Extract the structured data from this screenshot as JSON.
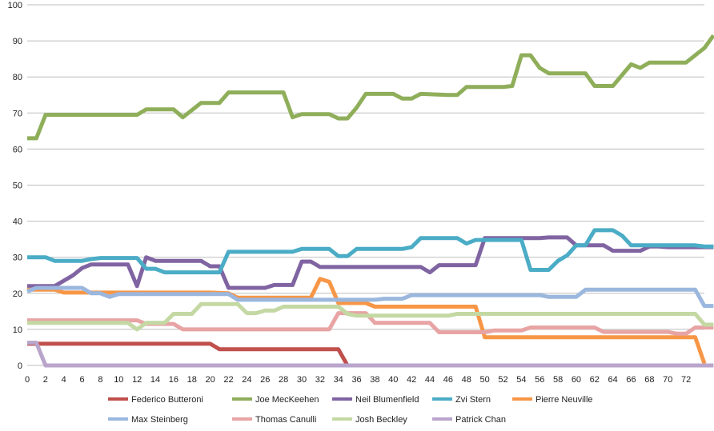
{
  "chart_data": {
    "type": "line",
    "title": "",
    "xlabel": "",
    "ylabel": "",
    "ylim": [
      0,
      100
    ],
    "yticks": [
      0,
      10,
      20,
      30,
      40,
      50,
      60,
      70,
      80,
      90,
      100
    ],
    "xlim": [
      0,
      72
    ],
    "xticks": [
      0,
      2,
      4,
      6,
      8,
      10,
      12,
      14,
      16,
      18,
      20,
      22,
      24,
      26,
      28,
      30,
      32,
      34,
      36,
      38,
      40,
      42,
      44,
      46,
      48,
      50,
      52,
      54,
      56,
      58,
      60,
      62,
      64,
      66,
      68,
      70,
      72
    ],
    "grid": "horizontal",
    "legend_position": "bottom",
    "series": [
      {
        "name": "Federico Butteroni",
        "color": "#c0504d",
        "points": [
          [
            0,
            6
          ],
          [
            20,
            6
          ],
          [
            21,
            4.5
          ],
          [
            34,
            4.5
          ],
          [
            35,
            0
          ]
        ]
      },
      {
        "name": "Joe MecKeehen",
        "color": "#8fae5a",
        "points": [
          [
            0,
            63
          ],
          [
            1,
            63
          ],
          [
            2,
            69.5
          ],
          [
            12,
            69.5
          ],
          [
            13,
            71
          ],
          [
            16,
            71
          ],
          [
            17,
            68.8
          ],
          [
            19,
            72.8
          ],
          [
            21,
            72.8
          ],
          [
            22,
            75.7
          ],
          [
            28,
            75.7
          ],
          [
            29,
            68.8
          ],
          [
            30,
            69.7
          ],
          [
            33,
            69.7
          ],
          [
            34,
            68.5
          ],
          [
            35,
            68.5
          ],
          [
            36,
            71.5
          ],
          [
            37,
            75.3
          ],
          [
            40,
            75.3
          ],
          [
            41,
            74
          ],
          [
            42,
            74
          ],
          [
            43,
            75.3
          ],
          [
            46,
            75
          ],
          [
            47,
            75
          ],
          [
            48,
            77.2
          ],
          [
            52,
            77.2
          ],
          [
            53,
            77.5
          ],
          [
            54,
            86
          ],
          [
            55,
            86
          ],
          [
            56,
            82.5
          ],
          [
            57,
            81
          ],
          [
            61,
            81
          ],
          [
            62,
            77.5
          ],
          [
            63,
            77.5
          ],
          [
            64,
            77.5
          ],
          [
            65,
            80.5
          ],
          [
            66,
            83.5
          ],
          [
            67,
            82.5
          ],
          [
            68,
            84
          ],
          [
            72,
            84
          ],
          [
            73,
            86
          ],
          [
            74,
            88
          ],
          [
            75,
            91.5
          ]
        ]
      },
      {
        "name": "Neil Blumenfield",
        "color": "#8064a2",
        "points": [
          [
            0,
            22
          ],
          [
            3,
            22
          ],
          [
            5,
            25
          ],
          [
            6,
            27
          ],
          [
            7,
            28
          ],
          [
            11,
            28
          ],
          [
            12,
            22
          ],
          [
            13,
            30
          ],
          [
            14,
            29
          ],
          [
            19,
            29
          ],
          [
            20,
            27.5
          ],
          [
            21,
            27.5
          ],
          [
            22,
            21.5
          ],
          [
            26,
            21.5
          ],
          [
            27,
            22.3
          ],
          [
            29,
            22.3
          ],
          [
            30,
            28.8
          ],
          [
            31,
            28.8
          ],
          [
            32,
            27.3
          ],
          [
            43,
            27.3
          ],
          [
            44,
            25.8
          ],
          [
            45,
            27.8
          ],
          [
            49,
            27.8
          ],
          [
            50,
            35.3
          ],
          [
            56,
            35.3
          ],
          [
            57,
            35.5
          ],
          [
            59,
            35.5
          ],
          [
            60,
            33.3
          ],
          [
            63,
            33.3
          ],
          [
            64,
            31.8
          ],
          [
            67,
            31.8
          ],
          [
            68,
            33
          ],
          [
            69,
            33
          ],
          [
            70,
            32.8
          ],
          [
            75,
            32.8
          ]
        ]
      },
      {
        "name": "Zvi Stern",
        "color": "#4bacc6",
        "points": [
          [
            0,
            30
          ],
          [
            2,
            30
          ],
          [
            3,
            29
          ],
          [
            6,
            29
          ],
          [
            7,
            29.5
          ],
          [
            8,
            29.8
          ],
          [
            12,
            29.8
          ],
          [
            13,
            26.8
          ],
          [
            14,
            26.8
          ],
          [
            15,
            25.8
          ],
          [
            20,
            25.8
          ],
          [
            21,
            25.8
          ],
          [
            22,
            31.5
          ],
          [
            29,
            31.5
          ],
          [
            30,
            32.3
          ],
          [
            33,
            32.3
          ],
          [
            34,
            30.3
          ],
          [
            35,
            30.3
          ],
          [
            36,
            32.3
          ],
          [
            40,
            32.3
          ],
          [
            41,
            32.3
          ],
          [
            42,
            32.8
          ],
          [
            43,
            35.3
          ],
          [
            47,
            35.3
          ],
          [
            48,
            33.8
          ],
          [
            49,
            34.8
          ],
          [
            54,
            34.8
          ],
          [
            55,
            26.5
          ],
          [
            57,
            26.5
          ],
          [
            58,
            29
          ],
          [
            59,
            30.5
          ],
          [
            60,
            33.3
          ],
          [
            61,
            33.3
          ],
          [
            62,
            37.5
          ],
          [
            64,
            37.5
          ],
          [
            65,
            36
          ],
          [
            66,
            33.3
          ],
          [
            73,
            33.3
          ],
          [
            74,
            33
          ],
          [
            75,
            33
          ]
        ]
      },
      {
        "name": "Pierre Neuville",
        "color": "#f79646",
        "points": [
          [
            0,
            21
          ],
          [
            3,
            21
          ],
          [
            4,
            20.2
          ],
          [
            20,
            20.2
          ],
          [
            22,
            20
          ],
          [
            23,
            18.8
          ],
          [
            31,
            18.8
          ],
          [
            32,
            24
          ],
          [
            33,
            23.2
          ],
          [
            34,
            17.3
          ],
          [
            36,
            17.3
          ],
          [
            37,
            17.3
          ],
          [
            38,
            16.3
          ],
          [
            49,
            16.3
          ],
          [
            50,
            7.8
          ],
          [
            73,
            7.8
          ],
          [
            74,
            0.5
          ]
        ]
      },
      {
        "name": "Max Steinberg",
        "color": "#9bb7de",
        "points": [
          [
            0,
            20.5
          ],
          [
            1,
            21.5
          ],
          [
            6,
            21.5
          ],
          [
            7,
            20
          ],
          [
            8,
            20
          ],
          [
            9,
            19
          ],
          [
            10,
            19.8
          ],
          [
            22,
            19.8
          ],
          [
            23,
            18.2
          ],
          [
            38,
            18.2
          ],
          [
            39,
            18.5
          ],
          [
            41,
            18.5
          ],
          [
            42,
            19.5
          ],
          [
            56,
            19.5
          ],
          [
            57,
            19
          ],
          [
            60,
            19
          ],
          [
            61,
            21
          ],
          [
            73,
            21
          ],
          [
            74,
            16.5
          ],
          [
            75,
            16.5
          ]
        ]
      },
      {
        "name": "Thomas Canulli",
        "color": "#e8a4a4",
        "points": [
          [
            0,
            12.5
          ],
          [
            12,
            12.5
          ],
          [
            13,
            11.5
          ],
          [
            16,
            11.5
          ],
          [
            17,
            10
          ],
          [
            33,
            10
          ],
          [
            34,
            14.5
          ],
          [
            37,
            14.5
          ],
          [
            38,
            11.8
          ],
          [
            44,
            11.8
          ],
          [
            45,
            9.2
          ],
          [
            50,
            9.2
          ],
          [
            51,
            9.7
          ],
          [
            54,
            9.7
          ],
          [
            55,
            10.5
          ],
          [
            62,
            10.5
          ],
          [
            63,
            9.3
          ],
          [
            70,
            9.3
          ],
          [
            71,
            8.8
          ],
          [
            72,
            8.8
          ],
          [
            73,
            10.5
          ],
          [
            75,
            10.5
          ]
        ]
      },
      {
        "name": "Josh Beckley",
        "color": "#c4d8a3",
        "points": [
          [
            0,
            11.8
          ],
          [
            11,
            11.8
          ],
          [
            12,
            10
          ],
          [
            13,
            11.8
          ],
          [
            15,
            11.8
          ],
          [
            16,
            14.3
          ],
          [
            18,
            14.3
          ],
          [
            19,
            17
          ],
          [
            23,
            17
          ],
          [
            24,
            14.5
          ],
          [
            25,
            14.5
          ],
          [
            26,
            15.2
          ],
          [
            27,
            15.2
          ],
          [
            28,
            16.3
          ],
          [
            34,
            16.3
          ],
          [
            35,
            14.3
          ],
          [
            36,
            13.8
          ],
          [
            46,
            13.8
          ],
          [
            47,
            14.3
          ],
          [
            73,
            14.3
          ],
          [
            74,
            11.3
          ],
          [
            75,
            11.3
          ]
        ]
      },
      {
        "name": "Patrick Chan",
        "color": "#b9a5cc",
        "points": [
          [
            0,
            6.3
          ],
          [
            1,
            6.3
          ],
          [
            2,
            0
          ],
          [
            75,
            0
          ]
        ]
      }
    ]
  }
}
